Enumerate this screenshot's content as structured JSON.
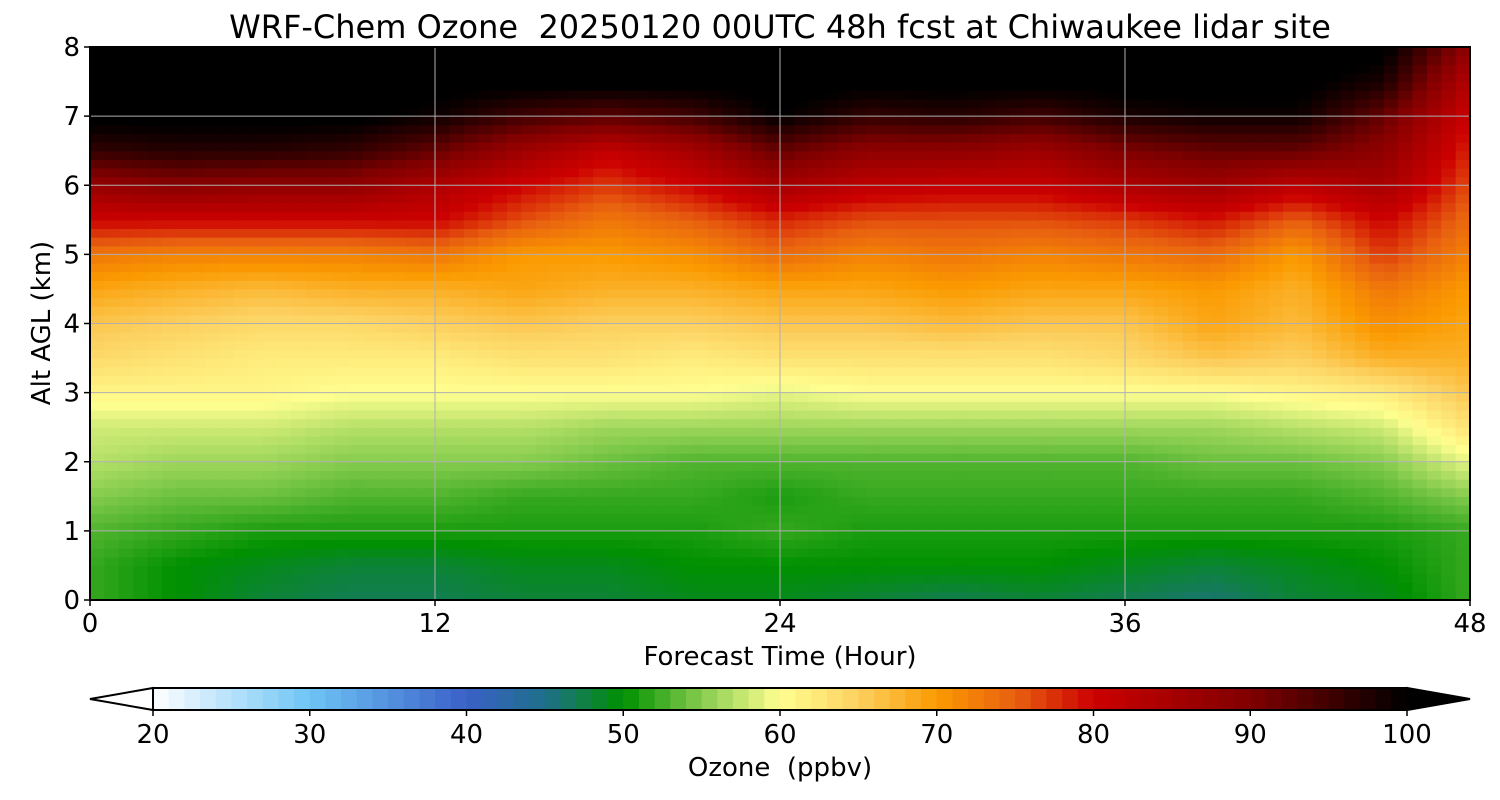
{
  "chart_data": {
    "type": "heatmap",
    "title": "WRF-Chem Ozone  20250120 00UTC 48h fcst at Chiwaukee lidar site",
    "xlabel": "Forecast Time (Hour)",
    "ylabel": "Alt AGL (km)",
    "xlim": [
      0,
      48
    ],
    "ylim": [
      0,
      8
    ],
    "xticks": [
      "0",
      "12",
      "24",
      "36",
      "48"
    ],
    "yticks": [
      "0",
      "1",
      "2",
      "3",
      "4",
      "5",
      "6",
      "7",
      "8"
    ],
    "grid": true,
    "x_hours": [
      0,
      3,
      6,
      9,
      12,
      15,
      18,
      21,
      24,
      27,
      30,
      33,
      36,
      39,
      42,
      45,
      48
    ],
    "y_km": [
      0,
      0.5,
      1,
      1.5,
      2,
      2.5,
      3,
      3.5,
      4,
      4.5,
      5,
      5.5,
      6,
      6.5,
      7,
      7.5,
      8
    ],
    "ozone_ppbv": [
      [
        52,
        50,
        48,
        47,
        47,
        48,
        48,
        49,
        49,
        48,
        47,
        48,
        47,
        46,
        48,
        49,
        52
      ],
      [
        52,
        50,
        49,
        48,
        48,
        49,
        49,
        50,
        50,
        50,
        50,
        50,
        49,
        48,
        49,
        50,
        52
      ],
      [
        53,
        52,
        51,
        51,
        51,
        51,
        51,
        51,
        52,
        51,
        51,
        51,
        51,
        51,
        51,
        51,
        52
      ],
      [
        55,
        54,
        54,
        53,
        53,
        52,
        52,
        52,
        51,
        52,
        52,
        52,
        52,
        52,
        52,
        53,
        55
      ],
      [
        57,
        56,
        56,
        55,
        55,
        55,
        54,
        53,
        53,
        53,
        53,
        53,
        53,
        54,
        54,
        55,
        59
      ],
      [
        58,
        58,
        58,
        57,
        57,
        57,
        56,
        56,
        56,
        56,
        56,
        56,
        56,
        56,
        57,
        58,
        63
      ],
      [
        61,
        61,
        61,
        60,
        60,
        60,
        60,
        60,
        59,
        60,
        60,
        60,
        60,
        60,
        61,
        62,
        66
      ],
      [
        64,
        63,
        62,
        62,
        62,
        63,
        63,
        62,
        63,
        63,
        63,
        63,
        64,
        66,
        65,
        68,
        68
      ],
      [
        66,
        65,
        64,
        64,
        65,
        66,
        65,
        65,
        66,
        66,
        67,
        66,
        66,
        69,
        67,
        71,
        69
      ],
      [
        69,
        68,
        67,
        68,
        68,
        69,
        68,
        68,
        69,
        69,
        70,
        69,
        69,
        70,
        68,
        73,
        70
      ],
      [
        73,
        72,
        72,
        72,
        73,
        70,
        70,
        71,
        74,
        72,
        73,
        72,
        73,
        74,
        70,
        77,
        72
      ],
      [
        80,
        80,
        80,
        80,
        80,
        76,
        73,
        75,
        78,
        76,
        76,
        76,
        77,
        79,
        75,
        80,
        74
      ],
      [
        87,
        89,
        88,
        88,
        84,
        80,
        77,
        80,
        85,
        82,
        81,
        81,
        84,
        86,
        82,
        85,
        76
      ],
      [
        96,
        97,
        97,
        96,
        92,
        86,
        81,
        85,
        92,
        88,
        88,
        86,
        90,
        92,
        92,
        88,
        78
      ],
      [
        101,
        101,
        101,
        101,
        99,
        95,
        93,
        95,
        100,
        96,
        97,
        95,
        98,
        99,
        99,
        92,
        80
      ],
      [
        101,
        101,
        101,
        101,
        101,
        101,
        101,
        101,
        101,
        101,
        101,
        101,
        101,
        101,
        101,
        98,
        83
      ],
      [
        101,
        101,
        101,
        101,
        101,
        101,
        101,
        101,
        101,
        101,
        101,
        101,
        101,
        101,
        101,
        101,
        88
      ]
    ],
    "colorbar": {
      "label": "Ozone  (ppbv)",
      "min": 20,
      "max": 100,
      "ticks": [
        "20",
        "30",
        "40",
        "50",
        "60",
        "70",
        "80",
        "90",
        "100"
      ],
      "extend": "both",
      "colors": [
        {
          "v": 20,
          "c": "#ffffff"
        },
        {
          "v": 30,
          "c": "#6ec4f5"
        },
        {
          "v": 40,
          "c": "#3a60c8"
        },
        {
          "v": 45,
          "c": "#1f6f8a"
        },
        {
          "v": 50,
          "c": "#009000"
        },
        {
          "v": 55,
          "c": "#86cc4e"
        },
        {
          "v": 60,
          "c": "#ffff90"
        },
        {
          "v": 65,
          "c": "#fcd060"
        },
        {
          "v": 70,
          "c": "#fb9a00"
        },
        {
          "v": 75,
          "c": "#e86010"
        },
        {
          "v": 80,
          "c": "#cc0000"
        },
        {
          "v": 90,
          "c": "#800000"
        },
        {
          "v": 100,
          "c": "#000000"
        }
      ]
    }
  }
}
